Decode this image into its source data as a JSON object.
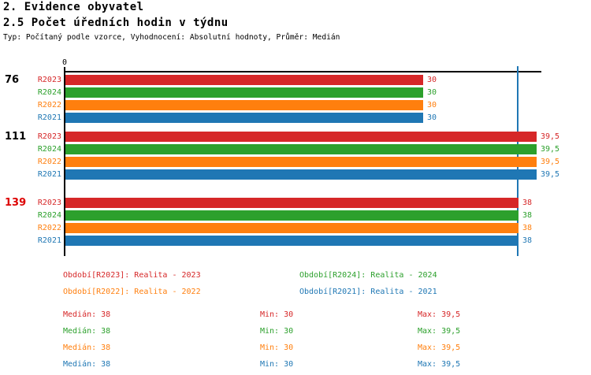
{
  "titles": {
    "line1": "2. Evidence obyvatel",
    "line2": "2.5 Počet úředních hodin v týdnu",
    "subtitle": "Typ: Počítaný podle vzorce, Vyhodnocení: Absolutní hodnoty, Průměr: Medián"
  },
  "colors": {
    "red": "#d62728",
    "green": "#2ca02c",
    "orange": "#ff7f0e",
    "blue": "#1f77b4",
    "axis": "#000000",
    "highlight_group_label": "#dd0000",
    "median_line": "#1f77b4"
  },
  "chart_data": {
    "type": "bar",
    "orientation": "horizontal-grouped",
    "xlim": [
      0,
      40
    ],
    "origin_tick_label": "0",
    "grid": false,
    "reference_line": {
      "value": 38,
      "label": "Medián",
      "color": "#1f77b4"
    },
    "series": [
      {
        "name": "R2023",
        "color": "#d62728"
      },
      {
        "name": "R2024",
        "color": "#2ca02c"
      },
      {
        "name": "R2022",
        "color": "#ff7f0e"
      },
      {
        "name": "R2021",
        "color": "#1f77b4"
      }
    ],
    "groups": [
      {
        "label": "76",
        "label_color": "#000000",
        "values": [
          30,
          30,
          30,
          30
        ],
        "value_labels": [
          "30",
          "30",
          "30",
          "30"
        ]
      },
      {
        "label": "111",
        "label_color": "#000000",
        "values": [
          39.5,
          39.5,
          39.5,
          39.5
        ],
        "value_labels": [
          "39,5",
          "39,5",
          "39,5",
          "39,5"
        ]
      },
      {
        "label": "139",
        "label_color": "#dd0000",
        "values": [
          38,
          38,
          38,
          38
        ],
        "value_labels": [
          "38",
          "38",
          "38",
          "38"
        ]
      }
    ]
  },
  "legend": {
    "items": [
      {
        "text": "Období[R2023]: Realita - 2023",
        "color": "#d62728"
      },
      {
        "text": "Období[R2024]: Realita - 2024",
        "color": "#2ca02c"
      },
      {
        "text": "Období[R2022]: Realita - 2022",
        "color": "#ff7f0e"
      },
      {
        "text": "Období[R2021]: Realita - 2021",
        "color": "#1f77b4"
      }
    ]
  },
  "stats": {
    "rows": [
      {
        "series": "R2023",
        "color": "#d62728",
        "median": "Medián: 38",
        "min": "Min: 30",
        "max": "Max: 39,5"
      },
      {
        "series": "R2024",
        "color": "#2ca02c",
        "median": "Medián: 38",
        "min": "Min: 30",
        "max": "Max: 39,5"
      },
      {
        "series": "R2022",
        "color": "#ff7f0e",
        "median": "Medián: 38",
        "min": "Min: 30",
        "max": "Max: 39,5"
      },
      {
        "series": "R2021",
        "color": "#1f77b4",
        "median": "Medián: 38",
        "min": "Min: 30",
        "max": "Max: 39,5"
      }
    ]
  }
}
